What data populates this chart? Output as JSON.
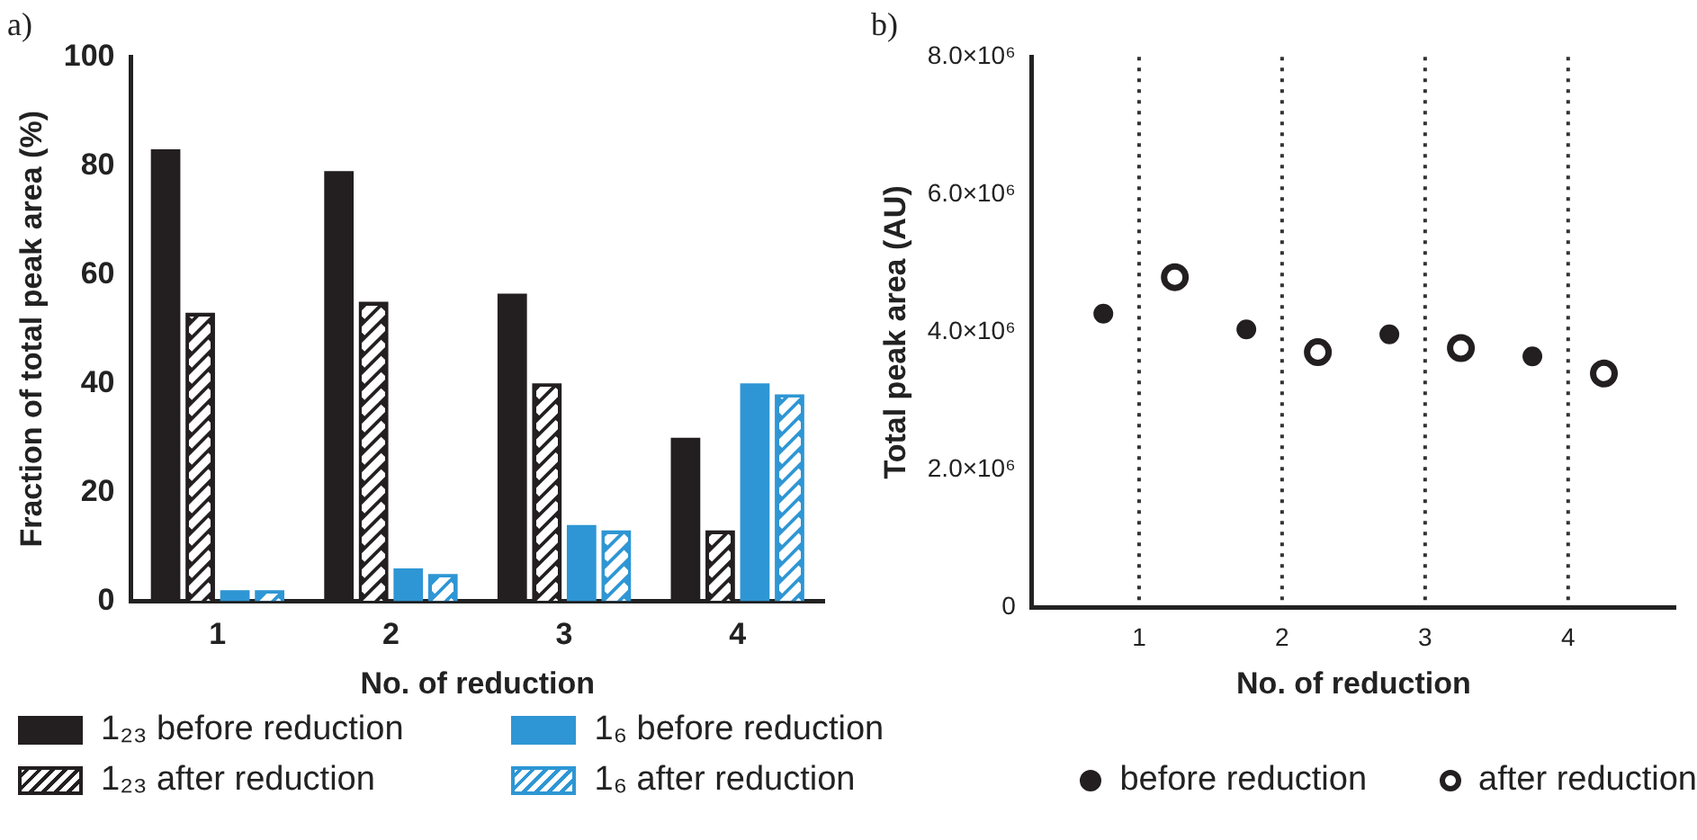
{
  "chart_data": [
    {
      "type": "bar",
      "title": "a)",
      "xlabel": "No. of reduction",
      "ylabel": "Fraction of total peak area (%)",
      "categories": [
        "1",
        "2",
        "3",
        "4"
      ],
      "series": [
        {
          "name": "1₂₃ before reduction",
          "color": "#231f20",
          "values": [
            83,
            79,
            56.5,
            30
          ]
        },
        {
          "name": "1₂₃ after reduction",
          "color": "#231f20",
          "values": [
            53,
            55,
            40,
            13
          ]
        },
        {
          "name": "1₆ before reduction",
          "color": "#2e96d4",
          "values": [
            2,
            6,
            14,
            40
          ]
        },
        {
          "name": "1₆ after reduction",
          "color": "#2e96d4",
          "values": [
            2,
            5,
            13,
            38
          ]
        }
      ],
      "ylim": [
        0,
        100
      ],
      "yticks": [
        0,
        20,
        40,
        60,
        80,
        100
      ],
      "legend": "bottom"
    },
    {
      "type": "scatter",
      "title": "b)",
      "xlabel": "No. of reduction",
      "ylabel": "Total peak area (AU)",
      "series": [
        {
          "name": "before reduction",
          "color": "#231f20",
          "x": [
            0.75,
            1.75,
            2.75,
            3.75
          ],
          "values": [
            4270000,
            4040000,
            3970000,
            3650000
          ]
        },
        {
          "name": "after reduction",
          "color": "#231f20",
          "x": [
            1.25,
            2.25,
            3.25,
            4.25
          ],
          "values": [
            4800000,
            3710000,
            3770000,
            3400000
          ]
        }
      ],
      "xlim": [
        0.25,
        4.75
      ],
      "xticks": [
        1,
        2,
        3,
        4
      ],
      "ylim": [
        0,
        8000000
      ],
      "yticks": [
        0,
        {
          "value": 2000000,
          "label": "2.0×10⁶"
        },
        {
          "value": 4000000,
          "label": "4.0×10⁶"
        },
        {
          "value": 6000000,
          "label": "6.0×10⁶"
        },
        {
          "value": 8000000,
          "label": "8.0×10⁶"
        }
      ],
      "grid": "x",
      "marker": "circle",
      "legend": "bottom right"
    }
  ]
}
